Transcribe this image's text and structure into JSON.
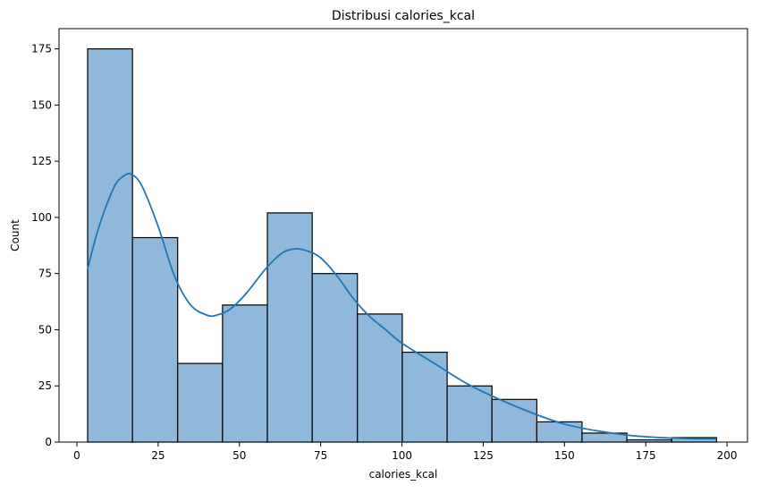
{
  "chart_data": {
    "type": "bar",
    "subtype": "histogram",
    "title": "Distribusi calories_kcal",
    "xlabel": "calories_kcal",
    "ylabel": "Count",
    "xlim": [
      -5.5,
      206.3
    ],
    "ylim": [
      0,
      184
    ],
    "xticks": [
      0,
      25,
      50,
      75,
      100,
      125,
      150,
      175,
      200
    ],
    "yticks": [
      0,
      25,
      50,
      75,
      100,
      125,
      150,
      175
    ],
    "bins": [
      {
        "x0": 3.3,
        "x1": 17.1,
        "count": 175
      },
      {
        "x0": 17.1,
        "x1": 31.0,
        "count": 91
      },
      {
        "x0": 31.0,
        "x1": 44.8,
        "count": 35
      },
      {
        "x0": 44.8,
        "x1": 58.6,
        "count": 61
      },
      {
        "x0": 58.6,
        "x1": 72.4,
        "count": 102
      },
      {
        "x0": 72.4,
        "x1": 86.3,
        "count": 75
      },
      {
        "x0": 86.3,
        "x1": 100.1,
        "count": 57
      },
      {
        "x0": 100.1,
        "x1": 113.9,
        "count": 40
      },
      {
        "x0": 113.9,
        "x1": 127.7,
        "count": 25
      },
      {
        "x0": 127.7,
        "x1": 141.5,
        "count": 19
      },
      {
        "x0": 141.5,
        "x1": 155.4,
        "count": 9
      },
      {
        "x0": 155.4,
        "x1": 169.2,
        "count": 4
      },
      {
        "x0": 169.2,
        "x1": 183.0,
        "count": 1
      },
      {
        "x0": 183.0,
        "x1": 196.8,
        "count": 2
      }
    ],
    "kde": {
      "x": [
        3.3,
        6,
        9,
        12,
        15,
        17,
        20,
        25,
        30,
        35,
        40,
        43,
        47,
        52,
        58,
        63,
        67,
        71,
        75,
        80,
        85,
        90,
        95,
        100,
        110,
        120,
        130,
        140,
        150,
        160,
        170,
        180,
        190,
        196.8
      ],
      "y": [
        77,
        92,
        105,
        115,
        119,
        119,
        114,
        96,
        74,
        61,
        56.5,
        56.5,
        59,
        66,
        77,
        84,
        86,
        85,
        82,
        74,
        64,
        56,
        50,
        44,
        35,
        26,
        19,
        13,
        8,
        5,
        3,
        2,
        1.5,
        1.5
      ]
    },
    "colors": {
      "bar_fill": "#8fb8da",
      "bar_edge": "#000000",
      "kde_line": "#1f77b4",
      "axes": "#000000"
    },
    "grid": false,
    "legend": "none"
  }
}
